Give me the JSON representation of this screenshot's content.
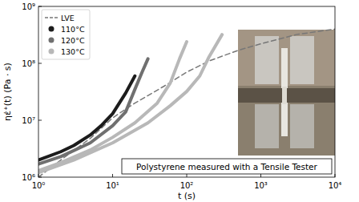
{
  "chart_data": {
    "type": "line",
    "xlabel": "t (s)",
    "ylabel": "ηε̇⁺(t) (Pa · s)",
    "annotation": "Polystyrene measured with a Tensile Tester",
    "log": true,
    "legend": "upper left",
    "xlim": [
      1,
      10000
    ],
    "ylim": [
      1000000,
      1000000000
    ],
    "xticks": [
      {
        "value": 1,
        "label": "10⁰"
      },
      {
        "value": 10,
        "label": "10¹"
      },
      {
        "value": 100,
        "label": "10²"
      },
      {
        "value": 1000,
        "label": "10³"
      },
      {
        "value": 10000,
        "label": "10⁴"
      }
    ],
    "yticks": [
      {
        "value": 1000000,
        "label": "10⁶"
      },
      {
        "value": 10000000,
        "label": "10⁷"
      },
      {
        "value": 100000000,
        "label": "10⁸"
      },
      {
        "value": 1000000000,
        "label": "10⁹"
      }
    ],
    "series": [
      {
        "name": "LVE",
        "color": "#777777",
        "line_style": "dashed",
        "x": [
          1,
          2,
          5,
          10,
          20,
          50,
          100,
          200,
          500,
          1000,
          3000,
          10000
        ],
        "values": [
          1000000,
          2000000,
          4800000,
          11000000,
          20000000,
          40000000,
          70000000,
          110000000,
          170000000,
          220000000,
          320000000,
          400000000
        ]
      },
      {
        "name": "110°C",
        "color": "#1c1c1c",
        "marker": "circle",
        "x": [
          1,
          2,
          3,
          5,
          7,
          10,
          15,
          20
        ],
        "values": [
          2000000,
          2800000,
          3600000,
          5500000,
          8000000,
          13000000,
          30000000,
          60000000
        ]
      },
      {
        "name": "120°C",
        "color": "#707070",
        "marker": "circle",
        "x": [
          1,
          2,
          5,
          10,
          15,
          20,
          25,
          30
        ],
        "values": [
          1700000,
          2300000,
          4000000,
          8000000,
          14000000,
          35000000,
          70000000,
          120000000
        ]
      },
      {
        "name": "130°C",
        "color": "#b8b8b8",
        "marker": "circle",
        "x": [
          1,
          2,
          5,
          10,
          20,
          40,
          60,
          80,
          100,
          null,
          1,
          3,
          10,
          30,
          60,
          100,
          150,
          200,
          300
        ],
        "values": [
          1300000,
          1800000,
          3000000,
          5000000,
          9000000,
          20000000,
          45000000,
          120000000,
          240000000,
          null,
          1200000,
          2000000,
          4000000,
          9000000,
          18000000,
          32000000,
          60000000,
          130000000,
          320000000
        ]
      }
    ]
  }
}
